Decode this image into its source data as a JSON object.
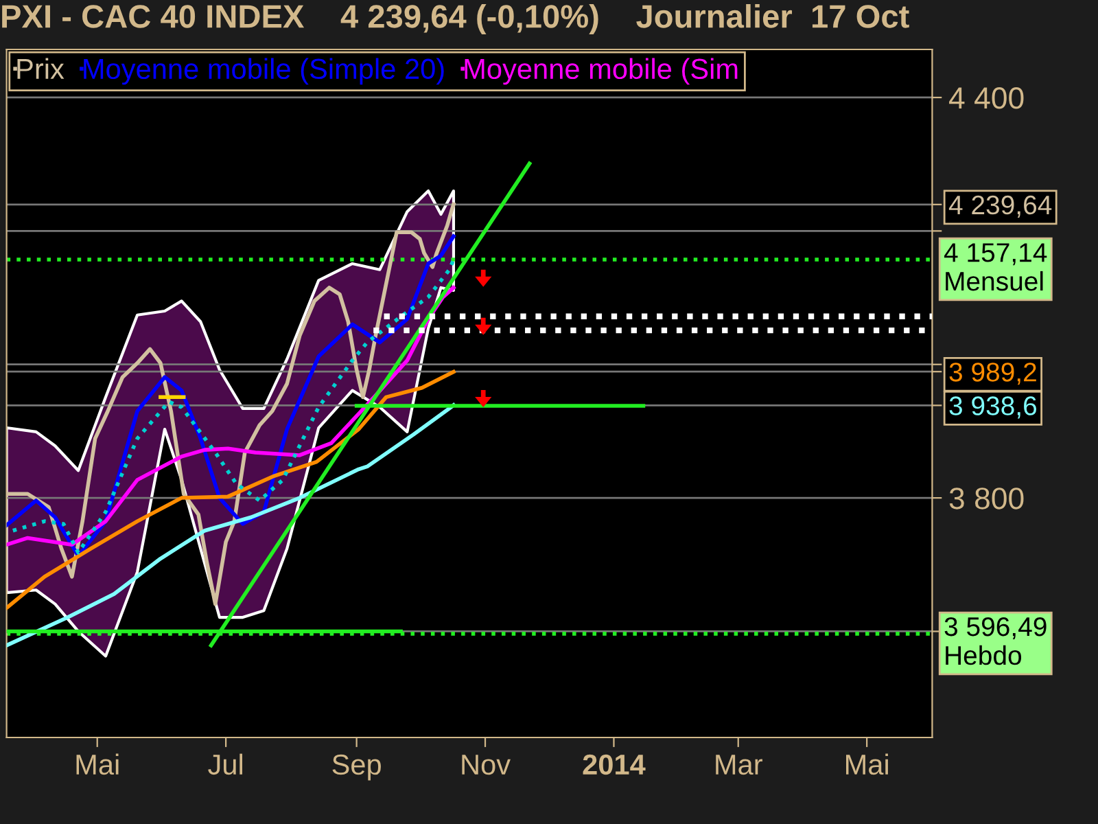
{
  "chart_data": {
    "type": "line",
    "title": "PXI - CAC 40 INDEX    4 239,64 (-0,10%)    Journalier  17 Oct",
    "xlim": [
      "2013-03-19",
      "2014-06-01"
    ],
    "xticks": [
      {
        "value": "2013-05-01",
        "label": "Mai"
      },
      {
        "value": "2013-07-01",
        "label": "Jul"
      },
      {
        "value": "2013-09-01",
        "label": "Sep"
      },
      {
        "value": "2013-11-01",
        "label": "Nov"
      },
      {
        "value": "2014-01-01",
        "label": "2014"
      },
      {
        "value": "2014-03-01",
        "label": "Mar"
      },
      {
        "value": "2014-05-01",
        "label": "Mai"
      }
    ],
    "ylim": [
      3441,
      4472
    ],
    "yticks": [
      {
        "value": 3600,
        "label": null
      },
      {
        "value": 3800,
        "label": "3 800"
      },
      {
        "value": 3938.6,
        "label": "3 938,6"
      },
      {
        "value": 3989.2,
        "label": "3 989,2"
      },
      {
        "value": 4000,
        "label": null
      },
      {
        "value": 4200,
        "label": null
      },
      {
        "value": 4239.64,
        "label": "4 239,64"
      },
      {
        "value": 4400,
        "label": "4 400"
      }
    ],
    "grid": "y",
    "legend": "top left",
    "series": [
      {
        "name": "Prix",
        "color": "#d2c0a0",
        "x": [
          "2013-03-19",
          "2013-03-29",
          "2013-04-08",
          "2013-04-14",
          "2013-04-19",
          "2013-04-24",
          "2013-04-30",
          "2013-05-06",
          "2013-05-13",
          "2013-05-20",
          "2013-05-26",
          "2013-05-31",
          "2013-06-05",
          "2013-06-11",
          "2013-06-18",
          "2013-06-22",
          "2013-06-26",
          "2013-07-01",
          "2013-07-05",
          "2013-07-10",
          "2013-07-17",
          "2013-07-23",
          "2013-07-30",
          "2013-08-05",
          "2013-08-12",
          "2013-08-19",
          "2013-08-24",
          "2013-08-28",
          "2013-09-01",
          "2013-09-04",
          "2013-09-07",
          "2013-09-10",
          "2013-09-14",
          "2013-09-20",
          "2013-09-27",
          "2013-10-01",
          "2013-10-03",
          "2013-10-07",
          "2013-10-09",
          "2013-10-14",
          "2013-10-16",
          "2013-10-17"
        ],
        "values": [
          3806,
          3806,
          3786,
          3724,
          3682,
          3765,
          3889,
          3930,
          3981,
          4002,
          4023,
          4002,
          3930,
          3806,
          3775,
          3703,
          3641,
          3734,
          3765,
          3868,
          3909,
          3930,
          3971,
          4043,
          4095,
          4115,
          4105,
          4064,
          3992,
          3951,
          3992,
          4043,
          4105,
          4198,
          4198,
          4188,
          4167,
          4146,
          4167,
          4208,
          4230,
          4240
        ]
      },
      {
        "name": "Moyenne mobile (Simple 20)",
        "color": "#0000ff",
        "x": [
          "2013-03-19",
          "2013-04-02",
          "2013-04-11",
          "2013-04-22",
          "2013-05-05",
          "2013-05-20",
          "2013-06-02",
          "2013-06-10",
          "2013-06-19",
          "2013-06-28",
          "2013-07-09",
          "2013-07-19",
          "2013-07-30",
          "2013-08-14",
          "2013-08-30",
          "2013-09-12",
          "2013-09-25",
          "2013-10-05",
          "2013-10-11",
          "2013-10-17"
        ],
        "values": [
          3759,
          3796,
          3771,
          3713,
          3765,
          3930,
          3981,
          3961,
          3889,
          3800,
          3761,
          3779,
          3903,
          4012,
          4060,
          4033,
          4068,
          4151,
          4163,
          4192
        ],
        "lower": [
          3658,
          3662,
          3641,
          3600,
          3563,
          3689,
          3903,
          3827,
          3724,
          3621,
          3621,
          3631,
          3724,
          3905,
          3961,
          3936,
          3899,
          4054,
          4115,
          4111
        ],
        "upper": [
          3905,
          3899,
          3878,
          3841,
          3951,
          4074,
          4080,
          4095,
          4064,
          3992,
          3934,
          3934,
          4008,
          4126,
          4151,
          4142,
          4229,
          4260,
          4225,
          4260
        ]
      },
      {
        "name": "Moyenne mobile (Sim",
        "color": "#ff00ff",
        "x": [
          "2013-03-19",
          "2013-03-29",
          "2013-04-19",
          "2013-05-05",
          "2013-05-20",
          "2013-06-10",
          "2013-06-21",
          "2013-07-02",
          "2013-07-15",
          "2013-08-05",
          "2013-08-20",
          "2013-09-02",
          "2013-09-11",
          "2013-09-25",
          "2013-10-05",
          "2013-10-12",
          "2013-10-17"
        ],
        "values": [
          3730,
          3740,
          3730,
          3765,
          3827,
          3862,
          3872,
          3874,
          3868,
          3864,
          3882,
          3926,
          3957,
          4006,
          4068,
          4101,
          4115
        ]
      },
      {
        "color": "#ff8c00",
        "x": [
          "2013-03-19",
          "2013-04-06",
          "2013-04-28",
          "2013-05-20",
          "2013-06-10",
          "2013-07-02",
          "2013-07-24",
          "2013-08-13",
          "2013-09-02",
          "2013-09-15",
          "2013-10-02",
          "2013-10-17"
        ],
        "values": [
          3635,
          3682,
          3724,
          3765,
          3800,
          3802,
          3833,
          3854,
          3903,
          3951,
          3965,
          3989
        ]
      },
      {
        "color": "#80ffff",
        "x": [
          "2013-03-19",
          "2013-04-17",
          "2013-05-09",
          "2013-05-31",
          "2013-06-21",
          "2013-07-13",
          "2013-08-05",
          "2013-09-02",
          "2013-09-06",
          "2013-09-28",
          "2013-10-15",
          "2013-10-17"
        ],
        "values": [
          3579,
          3621,
          3656,
          3709,
          3751,
          3771,
          3800,
          3843,
          3847,
          3895,
          3934,
          3939
        ]
      },
      {
        "color": "#00d0d0",
        "line_style": "dotted",
        "x": [
          "2013-03-22",
          "2013-04-06",
          "2013-04-15",
          "2013-04-22",
          "2013-05-05",
          "2013-05-20",
          "2013-06-04",
          "2013-06-10",
          "2013-06-26",
          "2013-07-06",
          "2013-07-17",
          "2013-07-28",
          "2013-08-14",
          "2013-08-30",
          "2013-09-06",
          "2013-09-23",
          "2013-10-05",
          "2013-10-15",
          "2013-10-17"
        ],
        "values": [
          3751,
          3765,
          3761,
          3718,
          3779,
          3889,
          3944,
          3936,
          3868,
          3821,
          3796,
          3827,
          3936,
          4006,
          4033,
          4074,
          4101,
          4142,
          4157
        ]
      },
      {
        "color": "#22ee22",
        "x": [
          "2013-06-24",
          "2013-11-22"
        ],
        "values": [
          3579,
          4301
        ]
      },
      {
        "color": "#22ee22",
        "x": [
          "2013-09-01",
          "2014-01-15"
        ],
        "values": [
          3938,
          3938
        ]
      },
      {
        "color": "#22ee22",
        "x": [
          "2013-03-19",
          "2013-09-22"
        ],
        "values": [
          3600,
          3600
        ]
      },
      {
        "color": "#ffffff",
        "line_style": "dotted",
        "x": [
          "2013-09-14",
          "2014-06-01"
        ],
        "values": [
          4072,
          4072
        ]
      },
      {
        "color": "#ffffff",
        "line_style": "dotted",
        "x": [
          "2013-09-09",
          "2014-06-01"
        ],
        "values": [
          4051,
          4051
        ]
      },
      {
        "color": "#ffd700",
        "x": [
          "2013-05-31",
          "2013-06-11"
        ],
        "values": [
          3951,
          3951
        ]
      }
    ],
    "ref_lines": [
      {
        "axis": "y",
        "value": 4157.14,
        "label": "4 157,14\nMensuel",
        "color": "#22ee22",
        "line_style": "dotted"
      },
      {
        "axis": "y",
        "value": 3596.49,
        "label": "3 596,49\nHebdo",
        "color": "#22ee22",
        "line_style": "dotted"
      }
    ]
  }
}
